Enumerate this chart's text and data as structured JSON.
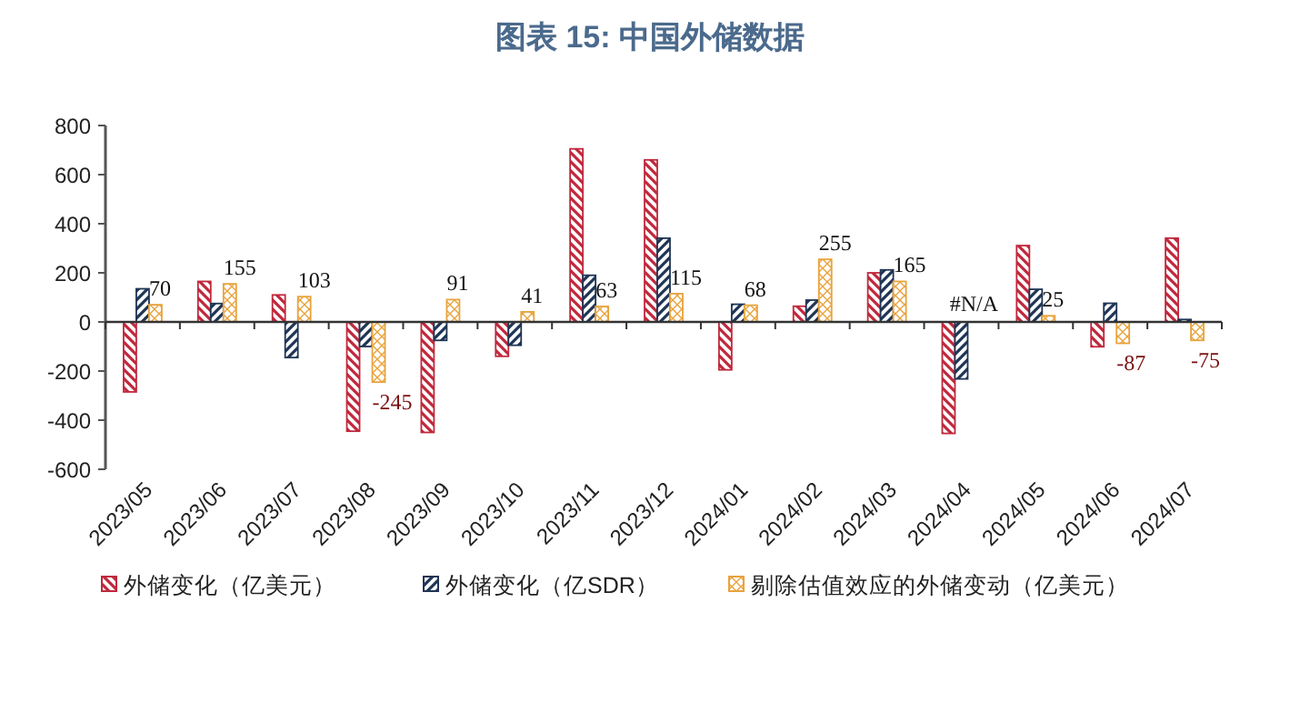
{
  "chart_data": {
    "type": "bar",
    "title": "图表 15: 中国外储数据",
    "categories": [
      "2023/05",
      "2023/06",
      "2023/07",
      "2023/08",
      "2023/09",
      "2023/10",
      "2023/11",
      "2023/12",
      "2024/01",
      "2024/02",
      "2024/03",
      "2024/04",
      "2024/05",
      "2024/06",
      "2024/07"
    ],
    "series": [
      {
        "name": "外储变化（亿美元）",
        "color": "#c0283c",
        "values": [
          -285,
          165,
          110,
          -445,
          -450,
          -140,
          705,
          660,
          -195,
          64,
          200,
          -454,
          311,
          -101,
          341
        ]
      },
      {
        "name": "外储变化（亿SDR）",
        "color": "#1f3555",
        "values": [
          135,
          75,
          -145,
          -100,
          -75,
          -95,
          190,
          341,
          72,
          89,
          212,
          -232,
          133,
          76,
          10
        ]
      },
      {
        "name": "剔除估值效应的外储变动（亿美元）",
        "color": "#e8a33c",
        "values": [
          70,
          155,
          103,
          -245,
          91,
          41,
          63,
          115,
          68,
          255,
          165,
          null,
          25,
          -87,
          -75
        ],
        "value_labels": [
          "70",
          "155",
          "103",
          "-245",
          "91",
          "41",
          "63",
          "115",
          "68",
          "255",
          "165",
          "#N/A",
          "25",
          "-87",
          "-75"
        ]
      }
    ],
    "ylim": [
      -600,
      800
    ],
    "yticks": [
      -600,
      -400,
      -200,
      0,
      200,
      400,
      600,
      800
    ],
    "legend": "bottom"
  }
}
